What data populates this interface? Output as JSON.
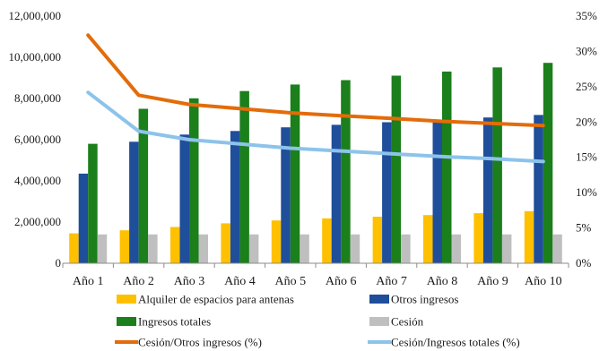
{
  "chart_data": {
    "type": "bar",
    "title": "",
    "xlabel": "",
    "ylabel": "",
    "categories": [
      "Año  1",
      "Año  2",
      "Año  3",
      "Año  4",
      "Año  5",
      "Año  6",
      "Año  7",
      "Año  8",
      "Año  9",
      "Año  10"
    ],
    "y_left": {
      "ylim": [
        0,
        12000000
      ],
      "ticks": [
        0,
        2000000,
        4000000,
        6000000,
        8000000,
        10000000,
        12000000
      ],
      "tick_labels": [
        "0",
        "2,000,000",
        "4,000,000",
        "6,000,000",
        "8,000,000",
        "10,000,000",
        "12,000,000"
      ]
    },
    "y_right": {
      "ylim": [
        0,
        35
      ],
      "ticks": [
        0,
        5,
        10,
        15,
        20,
        25,
        30,
        35
      ],
      "tick_labels": [
        "0%",
        "5%",
        "10%",
        "15%",
        "20%",
        "25%",
        "30%",
        "35%"
      ]
    },
    "series": [
      {
        "name": "Alquiler de espacios para antenas",
        "type": "bar",
        "axis": "left",
        "color": "#FFC000",
        "values": [
          1450000,
          1600000,
          1760000,
          1940000,
          2080000,
          2180000,
          2260000,
          2340000,
          2430000,
          2530000
        ]
      },
      {
        "name": "Otros ingresos",
        "type": "bar",
        "axis": "left",
        "color": "#1F4E9A",
        "values": [
          4350000,
          5900000,
          6250000,
          6420000,
          6600000,
          6720000,
          6850000,
          6970000,
          7080000,
          7200000
        ]
      },
      {
        "name": "Ingresos totales",
        "type": "bar",
        "axis": "left",
        "color": "#1B7F1B",
        "values": [
          5800000,
          7500000,
          8010000,
          8360000,
          8680000,
          8890000,
          9110000,
          9310000,
          9510000,
          9730000
        ]
      },
      {
        "name": "Cesión",
        "type": "bar",
        "axis": "left",
        "color": "#BFBFBF",
        "values": [
          1400000,
          1400000,
          1400000,
          1400000,
          1400000,
          1400000,
          1400000,
          1400000,
          1400000,
          1400000
        ]
      },
      {
        "name": "Cesión/Otros ingresos (%)",
        "type": "line",
        "axis": "right",
        "color": "#E36C0A",
        "values": [
          32.3,
          23.8,
          22.5,
          21.9,
          21.3,
          20.9,
          20.5,
          20.1,
          19.8,
          19.5
        ]
      },
      {
        "name": "Cesión/Ingresos totales  (%)",
        "type": "line",
        "axis": "right",
        "color": "#8DC3EB",
        "values": [
          24.2,
          18.7,
          17.5,
          16.9,
          16.3,
          15.9,
          15.5,
          15.1,
          14.8,
          14.4
        ]
      }
    ],
    "legend": {
      "position": "bottom",
      "columns": 2
    },
    "grid": false
  }
}
